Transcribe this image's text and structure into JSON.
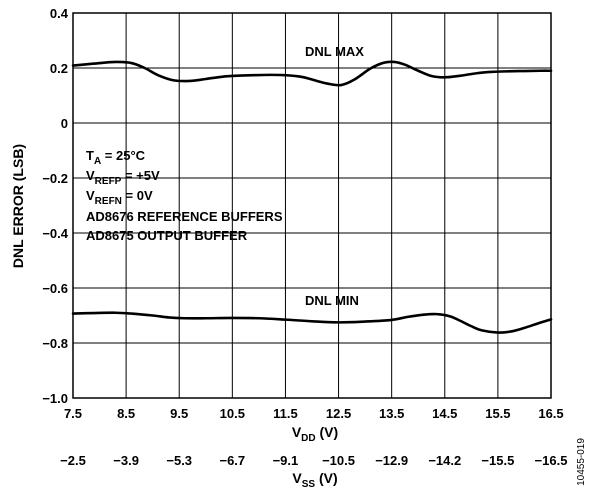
{
  "chart_data": {
    "type": "line",
    "ylabel": "DNL ERROR (LSB)",
    "xlabel_main": "V",
    "xlabel_sub": "DD",
    "xlabel_unit": " (V)",
    "x2label_main": "V",
    "x2label_sub": "SS",
    "x2label_unit": " (V)",
    "xlim": [
      7.5,
      16.5
    ],
    "ylim": [
      -1.0,
      0.4
    ],
    "grid": true,
    "x_ticks": [
      7.5,
      8.5,
      9.5,
      10.5,
      11.5,
      12.5,
      13.5,
      14.5,
      15.5,
      16.5
    ],
    "x_tick_labels": [
      "7.5",
      "8.5",
      "9.5",
      "10.5",
      "11.5",
      "12.5",
      "13.5",
      "14.5",
      "15.5",
      "16.5"
    ],
    "x2_tick_labels": [
      "−2.5",
      "−3.9",
      "−5.3",
      "−6.7",
      "−9.1",
      "−10.5",
      "−12.9",
      "−14.2",
      "−15.5",
      "−16.5"
    ],
    "y_ticks": [
      0.4,
      0.2,
      0,
      -0.2,
      -0.4,
      -0.6,
      -0.8,
      -1.0
    ],
    "y_tick_labels": [
      "0.4",
      "0.2",
      "0",
      "−0.2",
      "−0.4",
      "−0.6",
      "−0.8",
      "−1.0"
    ],
    "series": [
      {
        "name": "DNL MAX",
        "x": [
          7.5,
          7.9,
          8.3,
          8.6,
          8.85,
          9.1,
          9.4,
          9.7,
          10.0,
          10.3,
          10.6,
          10.9,
          11.2,
          11.5,
          11.8,
          12.0,
          12.3,
          12.55,
          12.8,
          13.1,
          13.35,
          13.55,
          13.75,
          14.0,
          14.25,
          14.5,
          14.8,
          15.1,
          15.4,
          15.7,
          16.0,
          16.3,
          16.5
        ],
        "y": [
          0.209,
          0.216,
          0.222,
          0.218,
          0.2,
          0.174,
          0.155,
          0.153,
          0.16,
          0.168,
          0.172,
          0.174,
          0.175,
          0.174,
          0.168,
          0.158,
          0.143,
          0.138,
          0.158,
          0.198,
          0.219,
          0.222,
          0.212,
          0.19,
          0.171,
          0.166,
          0.172,
          0.181,
          0.186,
          0.188,
          0.189,
          0.19,
          0.19
        ]
      },
      {
        "name": "DNL MIN",
        "x": [
          7.5,
          7.9,
          8.3,
          8.6,
          9.0,
          9.3,
          9.6,
          10.0,
          10.5,
          11.0,
          11.5,
          12.0,
          12.5,
          13.0,
          13.5,
          13.8,
          14.1,
          14.35,
          14.6,
          14.8,
          15.0,
          15.2,
          15.5,
          15.75,
          16.0,
          16.25,
          16.5
        ],
        "y": [
          -0.693,
          -0.691,
          -0.69,
          -0.693,
          -0.7,
          -0.707,
          -0.71,
          -0.71,
          -0.709,
          -0.71,
          -0.715,
          -0.721,
          -0.725,
          -0.722,
          -0.716,
          -0.705,
          -0.697,
          -0.695,
          -0.703,
          -0.72,
          -0.739,
          -0.754,
          -0.762,
          -0.758,
          -0.745,
          -0.729,
          -0.714
        ]
      }
    ],
    "annotations": {
      "max_label": "DNL MAX",
      "min_label": "DNL MIN",
      "cond_ta_main": "T",
      "cond_ta_sub": "A",
      "cond_ta_rest": " = 25°C",
      "cond_refp_main": "V",
      "cond_refp_sub": "REFP",
      "cond_refp_rest": " = +5V",
      "cond_refn_main": "V",
      "cond_refn_sub": "REFN",
      "cond_refn_rest": " = 0V",
      "cond_line4": "AD8676 REFERENCE BUFFERS",
      "cond_line5": "AD8675 OUTPUT BUFFER"
    },
    "figure_id": "10455-019"
  }
}
